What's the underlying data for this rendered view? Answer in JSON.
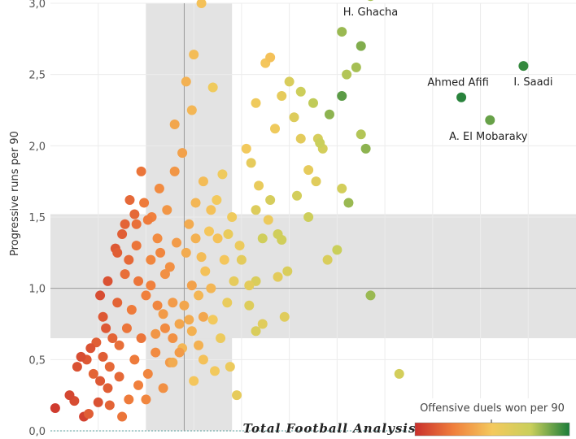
{
  "chart_data": {
    "type": "scatter",
    "ylabel": "Progressive runs per 90",
    "color_legend_title": "Offensive duels won per 90",
    "brand": "Total Football Analysis",
    "ylim": [
      0,
      3.0
    ],
    "yticks": [
      {
        "v": 0.0,
        "label": "0,0"
      },
      {
        "v": 0.5,
        "label": "0,5"
      },
      {
        "v": 1.0,
        "label": "1,0"
      },
      {
        "v": 1.5,
        "label": "1,5"
      },
      {
        "v": 2.0,
        "label": "2,0"
      },
      {
        "v": 2.5,
        "label": "2,5"
      },
      {
        "v": 3.0,
        "label": "3,0"
      }
    ],
    "x_gridlines": [
      0.5,
      1.0,
      1.5,
      2.0,
      2.5,
      3.0,
      3.5,
      4.0,
      4.5,
      5.0
    ],
    "xlim": [
      0,
      5.5
    ],
    "avg_x": 1.4,
    "avg_y": 1.0,
    "band_x": [
      1.0,
      1.9
    ],
    "band_y": [
      0.65,
      1.52
    ],
    "grid": true,
    "color_scale": [
      "#c9302c",
      "#f07f3c",
      "#f4c95d",
      "#c9cf5b",
      "#1c7d3a"
    ],
    "color_range": [
      0,
      5.5
    ],
    "labeled_points": [
      {
        "name": "H. Ghacha",
        "x": 3.35,
        "y": 3.05,
        "c": 4.4
      },
      {
        "name": "Ahmed Afifi",
        "x": 4.3,
        "y": 2.34,
        "c": 5.4
      },
      {
        "name": "I. Saadi",
        "x": 4.95,
        "y": 2.56,
        "c": 5.3
      },
      {
        "name": "A. El Mobaraky",
        "x": 4.6,
        "y": 2.18,
        "c": 4.9
      }
    ],
    "points": [
      [
        0.05,
        0.16,
        0.2
      ],
      [
        0.25,
        0.21,
        0.5
      ],
      [
        0.35,
        0.1,
        0.3
      ],
      [
        0.5,
        0.2,
        0.6
      ],
      [
        0.6,
        0.3,
        0.8
      ],
      [
        0.75,
        0.1,
        1.2
      ],
      [
        0.2,
        0.25,
        0.4
      ],
      [
        0.28,
        0.45,
        0.6
      ],
      [
        0.38,
        0.5,
        0.7
      ],
      [
        0.45,
        0.4,
        0.9
      ],
      [
        0.55,
        0.52,
        0.8
      ],
      [
        0.62,
        0.45,
        1.0
      ],
      [
        0.72,
        0.6,
        1.1
      ],
      [
        0.8,
        0.72,
        1.2
      ],
      [
        0.88,
        0.5,
        1.3
      ],
      [
        0.95,
        0.65,
        1.2
      ],
      [
        1.02,
        0.4,
        1.5
      ],
      [
        1.1,
        0.55,
        1.6
      ],
      [
        1.18,
        0.3,
        1.7
      ],
      [
        1.25,
        0.48,
        1.9
      ],
      [
        0.65,
        0.65,
        0.9
      ],
      [
        0.7,
        0.9,
        0.9
      ],
      [
        0.78,
        1.1,
        1.1
      ],
      [
        0.85,
        0.85,
        1.3
      ],
      [
        0.92,
        1.05,
        1.2
      ],
      [
        1.0,
        0.95,
        1.4
      ],
      [
        1.05,
        1.2,
        1.5
      ],
      [
        1.12,
        1.35,
        1.6
      ],
      [
        1.2,
        1.1,
        1.7
      ],
      [
        1.28,
        0.9,
        1.9
      ],
      [
        1.35,
        0.75,
        2.1
      ],
      [
        1.42,
        1.25,
        2.2
      ],
      [
        1.48,
        1.02,
        2.0
      ],
      [
        1.55,
        0.6,
        2.3
      ],
      [
        1.6,
        0.8,
        2.1
      ],
      [
        1.68,
        1.0,
        2.4
      ],
      [
        0.68,
        1.28,
        0.7
      ],
      [
        0.75,
        1.38,
        0.8
      ],
      [
        0.82,
        1.2,
        1.0
      ],
      [
        0.9,
        1.45,
        1.1
      ],
      [
        0.98,
        1.6,
        1.3
      ],
      [
        1.06,
        1.5,
        1.4
      ],
      [
        1.14,
        1.7,
        1.6
      ],
      [
        1.22,
        1.55,
        1.8
      ],
      [
        1.3,
        1.82,
        1.8
      ],
      [
        1.38,
        1.95,
        2.0
      ],
      [
        1.45,
        1.45,
        2.2
      ],
      [
        1.52,
        1.6,
        2.4
      ],
      [
        1.6,
        1.75,
        2.5
      ],
      [
        1.68,
        1.55,
        2.6
      ],
      [
        1.75,
        1.35,
        2.6
      ],
      [
        1.82,
        1.2,
        2.7
      ],
      [
        1.9,
        1.5,
        2.9
      ],
      [
        1.98,
        1.3,
        3.0
      ],
      [
        0.88,
        1.52,
        1.0
      ],
      [
        0.95,
        1.82,
        1.2
      ],
      [
        1.02,
        1.48,
        1.3
      ],
      [
        1.15,
        1.25,
        1.5
      ],
      [
        1.25,
        1.15,
        1.7
      ],
      [
        1.32,
        1.32,
        1.9
      ],
      [
        1.4,
        0.88,
        2.1
      ],
      [
        1.48,
        0.7,
        2.3
      ],
      [
        1.55,
        0.95,
        2.4
      ],
      [
        1.62,
        1.12,
        2.6
      ],
      [
        1.7,
        0.78,
        2.8
      ],
      [
        1.78,
        0.65,
        3.0
      ],
      [
        1.85,
        0.9,
        3.1
      ],
      [
        1.92,
        1.05,
        3.2
      ],
      [
        2.0,
        1.2,
        3.3
      ],
      [
        2.08,
        0.88,
        3.5
      ],
      [
        2.15,
        1.05,
        3.6
      ],
      [
        2.22,
        0.75,
        3.4
      ],
      [
        1.3,
        2.15,
        2.1
      ],
      [
        1.42,
        2.45,
        2.3
      ],
      [
        1.5,
        2.64,
        2.5
      ],
      [
        1.58,
        3.0,
        2.6
      ],
      [
        1.7,
        2.41,
        2.9
      ],
      [
        1.48,
        2.25,
        2.4
      ],
      [
        2.05,
        1.98,
        2.8
      ],
      [
        2.15,
        2.3,
        2.9
      ],
      [
        2.25,
        2.58,
        2.7
      ],
      [
        2.3,
        2.62,
        2.6
      ],
      [
        2.35,
        2.12,
        2.9
      ],
      [
        2.42,
        2.35,
        3.2
      ],
      [
        2.5,
        2.45,
        3.6
      ],
      [
        2.55,
        2.2,
        3.5
      ],
      [
        2.62,
        2.05,
        3.3
      ],
      [
        2.7,
        1.83,
        3.2
      ],
      [
        2.78,
        1.75,
        3.4
      ],
      [
        2.85,
        1.98,
        3.8
      ],
      [
        2.15,
        1.55,
        3.5
      ],
      [
        2.22,
        1.35,
        3.9
      ],
      [
        2.3,
        1.62,
        3.7
      ],
      [
        2.38,
        1.38,
        3.9
      ],
      [
        2.48,
        1.12,
        3.6
      ],
      [
        2.58,
        1.65,
        3.8
      ],
      [
        2.7,
        1.5,
        4.0
      ],
      [
        2.8,
        2.05,
        3.7
      ],
      [
        2.9,
        1.2,
        3.6
      ],
      [
        3.0,
        1.27,
        4.1
      ],
      [
        3.05,
        1.7,
        3.8
      ],
      [
        3.12,
        1.6,
        4.5
      ],
      [
        2.1,
        1.88,
        3.2
      ],
      [
        2.18,
        1.72,
        3.1
      ],
      [
        2.28,
        1.48,
        3.0
      ],
      [
        2.38,
        1.08,
        3.3
      ],
      [
        2.45,
        0.8,
        3.4
      ],
      [
        2.15,
        0.7,
        3.6
      ],
      [
        2.62,
        2.38,
        4.0
      ],
      [
        2.75,
        2.3,
        4.2
      ],
      [
        2.82,
        2.02,
        4.1
      ],
      [
        2.92,
        2.22,
        4.6
      ],
      [
        3.05,
        2.35,
        5.0
      ],
      [
        3.1,
        2.5,
        4.3
      ],
      [
        3.2,
        2.55,
        4.4
      ],
      [
        3.25,
        2.08,
        4.3
      ],
      [
        3.3,
        1.98,
        4.6
      ],
      [
        3.05,
        2.8,
        4.5
      ],
      [
        3.25,
        2.7,
        4.7
      ],
      [
        3.35,
        0.95,
        4.5
      ],
      [
        3.65,
        0.4,
        3.8
      ],
      [
        2.42,
        1.34,
        3.9
      ],
      [
        2.08,
        1.02,
        3.3
      ],
      [
        1.88,
        0.45,
        3.0
      ],
      [
        1.95,
        0.25,
        3.2
      ],
      [
        1.72,
        0.42,
        2.8
      ],
      [
        1.6,
        0.5,
        2.6
      ],
      [
        1.5,
        0.35,
        2.7
      ],
      [
        1.38,
        0.58,
        2.4
      ],
      [
        1.28,
        0.48,
        2.2
      ],
      [
        1.1,
        0.68,
        1.8
      ],
      [
        1.18,
        0.82,
        1.9
      ],
      [
        0.58,
        0.72,
        0.7
      ],
      [
        0.48,
        0.62,
        0.8
      ],
      [
        0.42,
        0.58,
        0.6
      ],
      [
        0.32,
        0.52,
        0.5
      ],
      [
        0.52,
        0.35,
        0.7
      ],
      [
        0.62,
        0.18,
        0.9
      ],
      [
        0.72,
        0.38,
        1.0
      ],
      [
        0.82,
        0.22,
        1.3
      ],
      [
        0.92,
        0.32,
        1.4
      ],
      [
        1.0,
        0.22,
        1.5
      ],
      [
        0.4,
        0.12,
        0.8
      ],
      [
        0.55,
        0.8,
        0.7
      ],
      [
        0.52,
        0.95,
        0.5
      ],
      [
        0.6,
        1.05,
        0.6
      ],
      [
        0.7,
        1.25,
        0.8
      ],
      [
        0.78,
        1.45,
        0.9
      ],
      [
        0.83,
        1.62,
        1.0
      ],
      [
        0.9,
        1.3,
        1.2
      ],
      [
        1.05,
        1.02,
        1.4
      ],
      [
        1.12,
        0.88,
        1.5
      ],
      [
        1.2,
        0.72,
        1.6
      ],
      [
        1.28,
        0.65,
        1.7
      ],
      [
        1.35,
        0.55,
        1.9
      ],
      [
        1.45,
        0.78,
        2.2
      ],
      [
        1.52,
        1.35,
        2.3
      ],
      [
        1.58,
        1.22,
        2.5
      ],
      [
        1.66,
        1.4,
        2.7
      ],
      [
        1.74,
        1.62,
        2.8
      ],
      [
        1.8,
        1.8,
        2.9
      ],
      [
        1.86,
        1.38,
        3.1
      ]
    ]
  }
}
